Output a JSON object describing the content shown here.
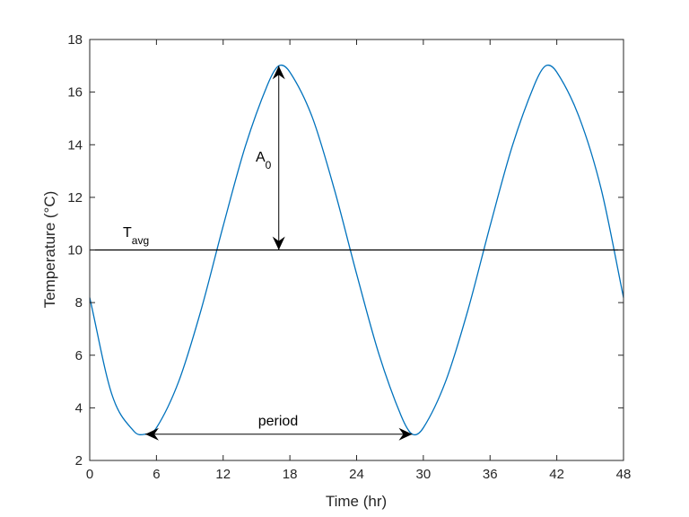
{
  "chart_data": {
    "type": "line",
    "xlabel": "Time (hr)",
    "ylabel": "Temperature (°C)",
    "xlim": [
      0,
      48
    ],
    "ylim": [
      2,
      18
    ],
    "xticks": [
      0,
      6,
      12,
      18,
      24,
      30,
      36,
      42,
      48
    ],
    "yticks": [
      2,
      4,
      6,
      8,
      10,
      12,
      14,
      16,
      18
    ],
    "grid": false,
    "series": [
      {
        "color": "#0072BD",
        "x": [
          0,
          2,
          4,
          5,
          6,
          8,
          10,
          12,
          14,
          16,
          17,
          18,
          20,
          22,
          24,
          26,
          28,
          29,
          30,
          32,
          34,
          36,
          38,
          40,
          41,
          42,
          44,
          46,
          48
        ],
        "y": [
          8.19,
          4.5,
          3.1,
          3.0,
          3.24,
          5.0,
          7.7,
          10.91,
          13.95,
          16.29,
          17.0,
          16.76,
          15.06,
          12.3,
          9.09,
          6.05,
          3.7,
          3.0,
          3.24,
          5.0,
          7.7,
          10.91,
          13.95,
          16.29,
          17.0,
          16.76,
          15.06,
          12.3,
          8.19
        ]
      }
    ],
    "reference_lines": [
      {
        "y": 10,
        "color": "#000000",
        "label_main": "T",
        "label_sub": "avg"
      }
    ],
    "annotations": {
      "amplitude": {
        "x": 17,
        "y_from": 10,
        "y_to": 17,
        "label_main": "A",
        "label_sub": "0"
      },
      "period": {
        "x_from": 5,
        "x_to": 29,
        "y": 3,
        "label": "period"
      }
    }
  }
}
